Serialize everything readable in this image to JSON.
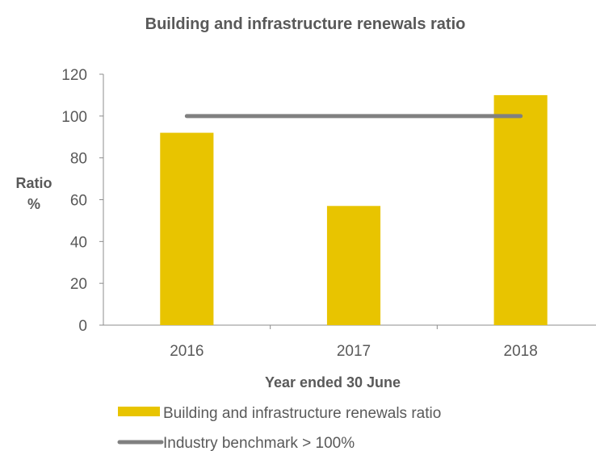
{
  "chart_data": {
    "type": "bar",
    "title": "Building and infrastructure renewals ratio",
    "xlabel": "Year ended 30 June",
    "ylabel_line1": "Ratio",
    "ylabel_line2": "%",
    "categories": [
      "2016",
      "2017",
      "2018"
    ],
    "series": [
      {
        "name": "Building and infrastructure renewals ratio",
        "type": "bar",
        "values": [
          92,
          57,
          110
        ],
        "color": "#E8C400"
      },
      {
        "name": "Industry benchmark > 100%",
        "type": "line",
        "values": [
          100,
          100,
          100
        ],
        "color": "#808080"
      }
    ],
    "ylim": [
      0,
      120
    ],
    "yticks": [
      0,
      20,
      40,
      60,
      80,
      100,
      120
    ],
    "grid": false,
    "legend_position": "bottom"
  }
}
